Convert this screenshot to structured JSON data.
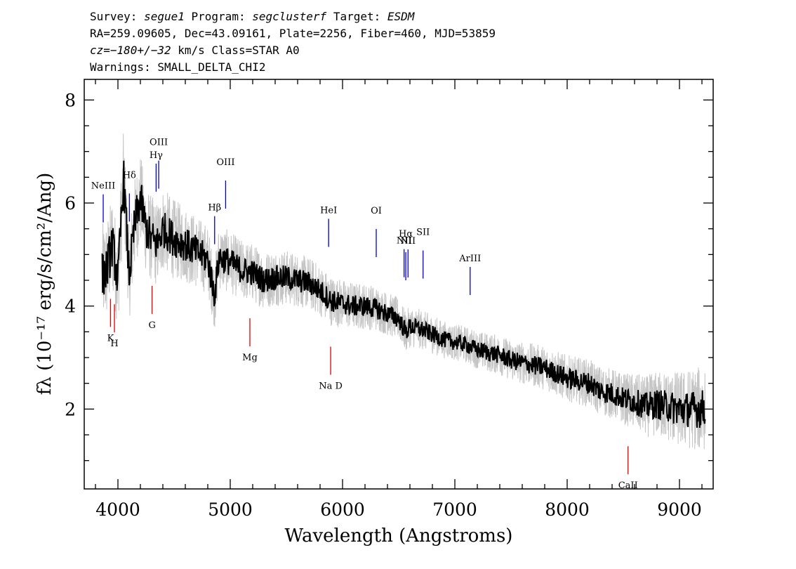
{
  "header": {
    "survey_label": "Survey:",
    "survey": "segue1",
    "program_label": "Program:",
    "program": "segclusterf",
    "target_label": "Target:",
    "target": "ESDM",
    "line2": "RA=259.09605, Dec=43.09161, Plate=2256, Fiber=460, MJD=53859",
    "cz_label": "cz=",
    "cz": "−180+/−32",
    "cz_rest": " km/s Class=STAR A0",
    "warnings": "Warnings: SMALL_DELTA_CHI2"
  },
  "colors": {
    "flux": "#000000",
    "noise_band": "#c4c4c4",
    "emission_line": "#0000cc",
    "absorption_line": "#dd0000",
    "axes": "#000000"
  },
  "chart_data": {
    "type": "line",
    "xlabel": "Wavelength (Angstroms)",
    "ylabel": "fλ (10⁻¹⁷ erg/s/cm²/Ang)",
    "xlim": [
      3700,
      9300
    ],
    "ylim": [
      0.45,
      8.4
    ],
    "x_ticks": [
      4000,
      5000,
      6000,
      7000,
      8000,
      9000
    ],
    "y_ticks": [
      2,
      4,
      6,
      8
    ],
    "grid": false,
    "legend": "none",
    "series": [
      {
        "style": "black-line",
        "x": [
          3860,
          3900,
          3950,
          4000,
          4050,
          4100,
          4150,
          4200,
          4250,
          4300,
          4350,
          4400,
          4450,
          4500,
          4600,
          4700,
          4800,
          4861,
          4900,
          5000,
          5100,
          5200,
          5300,
          5400,
          5500,
          5600,
          5700,
          5800,
          5900,
          6000,
          6100,
          6200,
          6300,
          6400,
          6500,
          6563,
          6600,
          6700,
          6800,
          6900,
          7000,
          7100,
          7200,
          7300,
          7400,
          7500,
          7600,
          7700,
          7800,
          7900,
          8000,
          8100,
          8200,
          8300,
          8400,
          8500,
          8600,
          8700,
          8800,
          8900,
          9000,
          9100,
          9200,
          9230
        ],
        "y": [
          4.6,
          4.7,
          5.2,
          4.5,
          6.5,
          4.6,
          5.6,
          6.1,
          5.5,
          5.3,
          5.2,
          5.5,
          5.4,
          5.3,
          5.2,
          5.05,
          4.9,
          4.2,
          4.95,
          4.85,
          4.7,
          4.65,
          4.5,
          4.55,
          4.55,
          4.5,
          4.45,
          4.3,
          4.1,
          4.05,
          4.0,
          4.0,
          3.95,
          3.85,
          3.75,
          3.5,
          3.6,
          3.55,
          3.45,
          3.35,
          3.3,
          3.25,
          3.15,
          3.1,
          3.05,
          2.95,
          2.9,
          2.85,
          2.8,
          2.7,
          2.6,
          2.55,
          2.5,
          2.35,
          2.3,
          2.2,
          2.15,
          2.05,
          2.1,
          2.05,
          2.0,
          2.0,
          2.0,
          2.05
        ]
      }
    ],
    "noise_band_halfwidth": [
      {
        "x": 3860,
        "dy": 1.0
      },
      {
        "x": 5000,
        "dy": 0.6
      },
      {
        "x": 7000,
        "dy": 0.35
      },
      {
        "x": 8500,
        "dy": 0.5
      },
      {
        "x": 9230,
        "dy": 0.85
      }
    ],
    "annotations": [
      {
        "label": "NeIII",
        "x": 3869,
        "kind": "emission"
      },
      {
        "label": "Hδ",
        "x": 4102,
        "kind": "emission"
      },
      {
        "label": "Hγ",
        "x": 4340,
        "kind": "emission"
      },
      {
        "label": "OIII",
        "x": 4363,
        "kind": "emission"
      },
      {
        "label": "Hβ",
        "x": 4861,
        "kind": "emission"
      },
      {
        "label": "OIII",
        "x": 4959,
        "kind": "emission"
      },
      {
        "label": "HeI",
        "x": 5876,
        "kind": "emission"
      },
      {
        "label": "OI",
        "x": 6300,
        "kind": "emission"
      },
      {
        "label": "NII",
        "x": 6548,
        "kind": "emission"
      },
      {
        "label": "Hα",
        "x": 6563,
        "kind": "emission"
      },
      {
        "label": "NII",
        "x": 6583,
        "kind": "emission"
      },
      {
        "label": "SII",
        "x": 6717,
        "kind": "emission"
      },
      {
        "label": "ArIII",
        "x": 7136,
        "kind": "emission"
      },
      {
        "label": "K",
        "x": 3934,
        "kind": "absorption"
      },
      {
        "label": "H",
        "x": 3969,
        "kind": "absorption"
      },
      {
        "label": "G",
        "x": 4304,
        "kind": "absorption"
      },
      {
        "label": "Mg",
        "x": 5175,
        "kind": "absorption"
      },
      {
        "label": "Na D",
        "x": 5894,
        "kind": "absorption"
      },
      {
        "label": "CaII",
        "x": 8542,
        "kind": "absorption"
      }
    ]
  }
}
